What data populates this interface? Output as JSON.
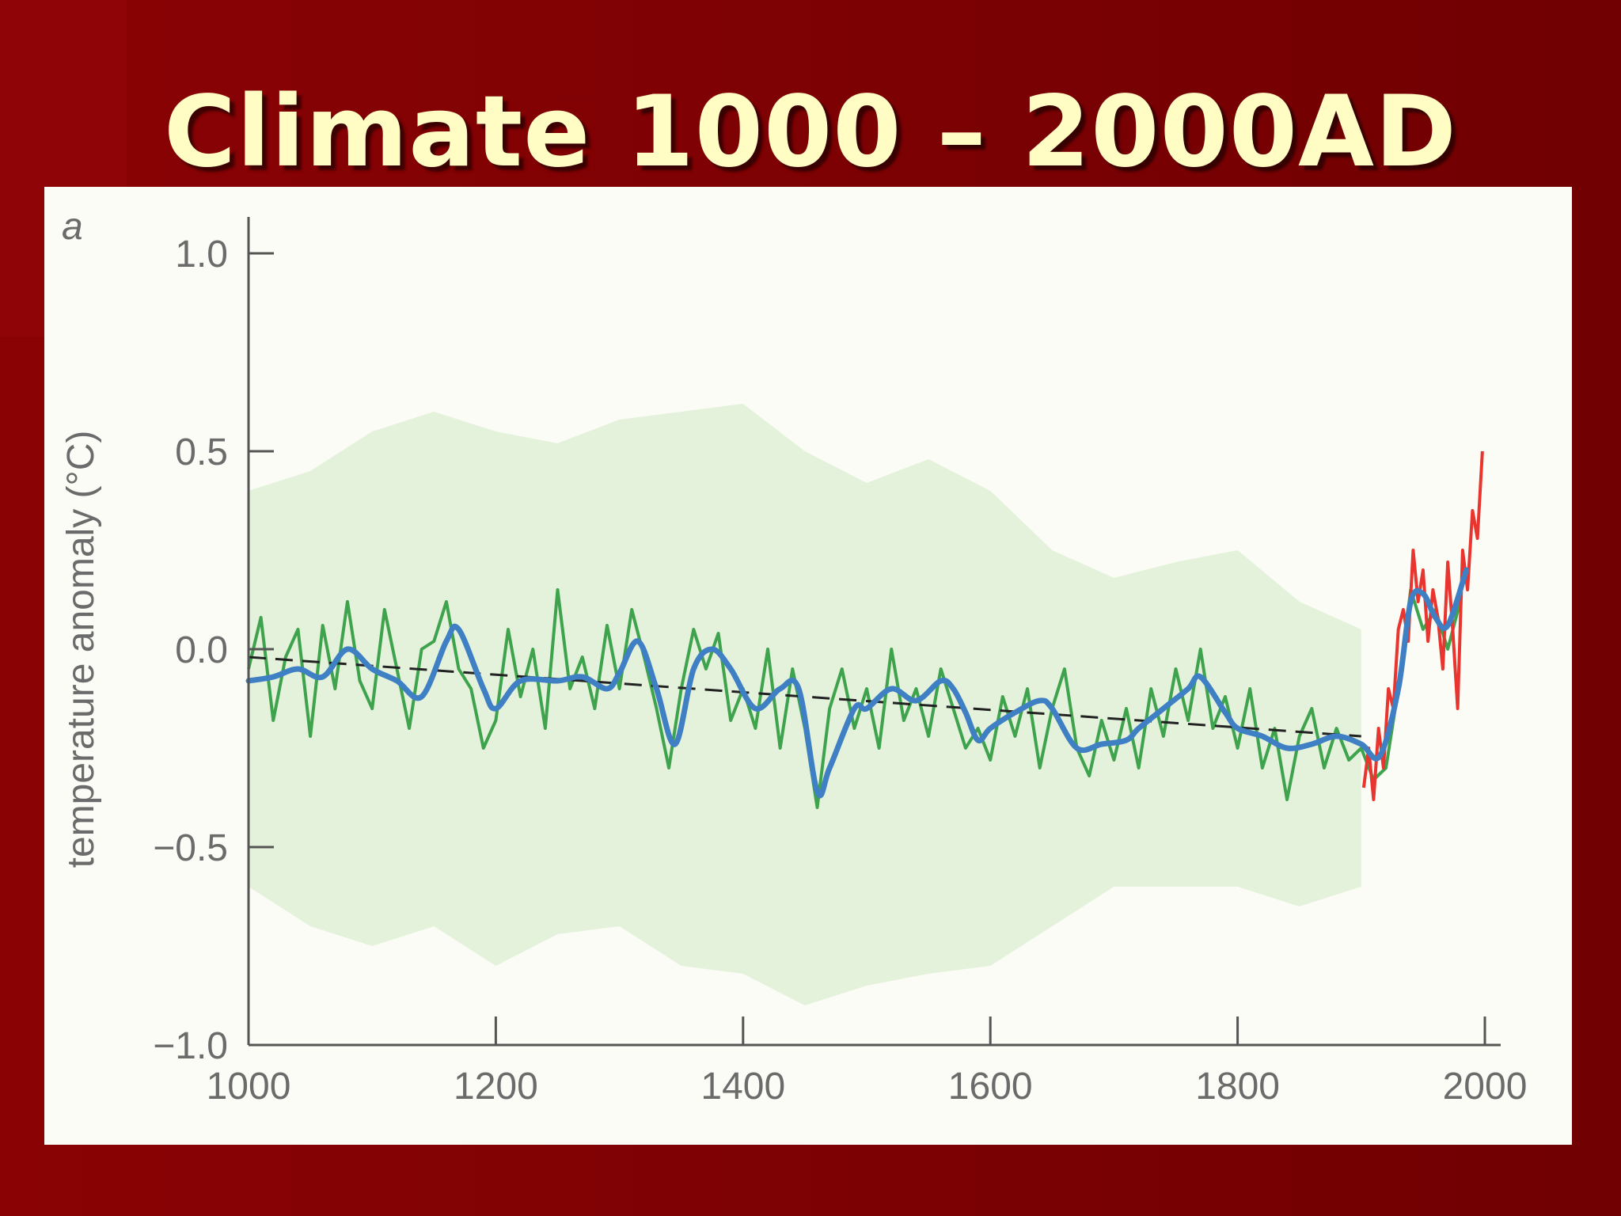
{
  "slide": {
    "title": "Climate 1000 – 2000AD"
  },
  "colors": {
    "background": "#7c0103",
    "title": "#fffdc4",
    "panel": "#fbfcf5",
    "uncertainty_band": "#dcefd3",
    "annual_series": "#3fa34d",
    "smoothed_series": "#3f7fc4",
    "instrumental_series": "#e8352f",
    "trend_line": "#222222",
    "axis": "#555555"
  },
  "chart_data": {
    "type": "line",
    "panel_label": "a",
    "title": "",
    "xlabel": "",
    "ylabel": "temperature anomaly (°C)",
    "xlim": [
      1000,
      2000
    ],
    "ylim": [
      -1.0,
      1.0
    ],
    "x_ticks": [
      "1000",
      "1200",
      "1400",
      "1600",
      "1800",
      "2000"
    ],
    "y_ticks": [
      "1.0",
      "0.5",
      "0.0",
      "−0.5",
      "−1.0"
    ],
    "grid": false,
    "legend": "none",
    "series": [
      {
        "kind": "uncertainty",
        "x": [
          1000,
          1050,
          1100,
          1150,
          1200,
          1250,
          1300,
          1350,
          1400,
          1450,
          1500,
          1550,
          1600,
          1650,
          1700,
          1750,
          1800,
          1850,
          1900
        ],
        "upper": [
          0.4,
          0.45,
          0.55,
          0.6,
          0.55,
          0.52,
          0.58,
          0.6,
          0.62,
          0.5,
          0.42,
          0.48,
          0.4,
          0.25,
          0.18,
          0.22,
          0.25,
          0.12,
          0.05
        ],
        "lower": [
          -0.6,
          -0.7,
          -0.75,
          -0.7,
          -0.8,
          -0.72,
          -0.7,
          -0.8,
          -0.82,
          -0.9,
          -0.85,
          -0.82,
          -0.8,
          -0.7,
          -0.6,
          -0.6,
          -0.6,
          -0.65,
          -0.6
        ]
      },
      {
        "kind": "annual",
        "x": [
          1000,
          1010,
          1020,
          1030,
          1040,
          1050,
          1060,
          1070,
          1080,
          1090,
          1100,
          1110,
          1120,
          1130,
          1140,
          1150,
          1160,
          1170,
          1180,
          1190,
          1200,
          1210,
          1220,
          1230,
          1240,
          1250,
          1260,
          1270,
          1280,
          1290,
          1300,
          1310,
          1320,
          1330,
          1340,
          1350,
          1360,
          1370,
          1380,
          1390,
          1400,
          1410,
          1420,
          1430,
          1440,
          1450,
          1460,
          1470,
          1480,
          1490,
          1500,
          1510,
          1520,
          1530,
          1540,
          1550,
          1560,
          1570,
          1580,
          1590,
          1600,
          1610,
          1620,
          1630,
          1640,
          1650,
          1660,
          1670,
          1680,
          1690,
          1700,
          1710,
          1720,
          1730,
          1740,
          1750,
          1760,
          1770,
          1780,
          1790,
          1800,
          1810,
          1820,
          1830,
          1840,
          1850,
          1860,
          1870,
          1880,
          1890,
          1900,
          1910,
          1920,
          1930,
          1940,
          1950,
          1960,
          1970,
          1980
        ],
        "values": [
          -0.05,
          0.08,
          -0.18,
          -0.02,
          0.05,
          -0.22,
          0.06,
          -0.1,
          0.12,
          -0.08,
          -0.15,
          0.1,
          -0.05,
          -0.2,
          0.0,
          0.02,
          0.12,
          -0.05,
          -0.1,
          -0.25,
          -0.18,
          0.05,
          -0.12,
          0.0,
          -0.2,
          0.15,
          -0.1,
          -0.02,
          -0.15,
          0.06,
          -0.1,
          0.1,
          -0.02,
          -0.15,
          -0.3,
          -0.1,
          0.05,
          -0.05,
          0.04,
          -0.18,
          -0.1,
          -0.2,
          0.0,
          -0.25,
          -0.05,
          -0.2,
          -0.4,
          -0.15,
          -0.05,
          -0.2,
          -0.1,
          -0.25,
          0.0,
          -0.18,
          -0.1,
          -0.22,
          -0.05,
          -0.15,
          -0.25,
          -0.2,
          -0.28,
          -0.12,
          -0.22,
          -0.1,
          -0.3,
          -0.15,
          -0.05,
          -0.25,
          -0.32,
          -0.18,
          -0.28,
          -0.15,
          -0.3,
          -0.1,
          -0.22,
          -0.05,
          -0.18,
          0.0,
          -0.2,
          -0.12,
          -0.25,
          -0.1,
          -0.3,
          -0.2,
          -0.38,
          -0.22,
          -0.15,
          -0.3,
          -0.2,
          -0.28,
          -0.25,
          -0.33,
          -0.3,
          -0.1,
          0.15,
          0.05,
          0.1,
          0.0,
          0.12
        ]
      },
      {
        "kind": "smoothed",
        "x": [
          1000,
          1020,
          1040,
          1060,
          1080,
          1100,
          1120,
          1140,
          1160,
          1170,
          1190,
          1200,
          1220,
          1250,
          1270,
          1290,
          1300,
          1315,
          1330,
          1345,
          1360,
          1375,
          1390,
          1410,
          1430,
          1445,
          1460,
          1470,
          1490,
          1500,
          1520,
          1540,
          1560,
          1570,
          1580,
          1590,
          1600,
          1620,
          1640,
          1650,
          1670,
          1690,
          1710,
          1720,
          1740,
          1760,
          1770,
          1790,
          1800,
          1820,
          1840,
          1860,
          1880,
          1900,
          1915,
          1930,
          1940,
          1950,
          1960,
          1970,
          1985
        ],
        "values": [
          -0.08,
          -0.07,
          -0.05,
          -0.07,
          0.0,
          -0.05,
          -0.08,
          -0.12,
          0.02,
          0.05,
          -0.1,
          -0.15,
          -0.08,
          -0.08,
          -0.07,
          -0.1,
          -0.06,
          0.02,
          -0.1,
          -0.24,
          -0.05,
          0.0,
          -0.05,
          -0.15,
          -0.1,
          -0.1,
          -0.36,
          -0.3,
          -0.15,
          -0.15,
          -0.1,
          -0.13,
          -0.08,
          -0.1,
          -0.16,
          -0.23,
          -0.2,
          -0.16,
          -0.13,
          -0.15,
          -0.25,
          -0.24,
          -0.23,
          -0.2,
          -0.15,
          -0.1,
          -0.07,
          -0.16,
          -0.2,
          -0.22,
          -0.25,
          -0.24,
          -0.22,
          -0.24,
          -0.27,
          -0.1,
          0.12,
          0.14,
          0.08,
          0.06,
          0.2
        ]
      },
      {
        "kind": "instrumental",
        "x": [
          1902,
          1906,
          1910,
          1914,
          1918,
          1922,
          1926,
          1930,
          1934,
          1938,
          1942,
          1946,
          1950,
          1954,
          1958,
          1962,
          1966,
          1970,
          1974,
          1978,
          1982,
          1986,
          1990,
          1994,
          1998
        ],
        "values": [
          -0.35,
          -0.25,
          -0.38,
          -0.2,
          -0.3,
          -0.1,
          -0.15,
          0.05,
          0.1,
          0.02,
          0.25,
          0.12,
          0.2,
          0.02,
          0.15,
          0.08,
          -0.05,
          0.22,
          0.05,
          -0.15,
          0.25,
          0.15,
          0.35,
          0.28,
          0.5
        ]
      },
      {
        "kind": "trend",
        "x": [
          1000,
          1900
        ],
        "values": [
          -0.02,
          -0.22
        ]
      }
    ]
  }
}
